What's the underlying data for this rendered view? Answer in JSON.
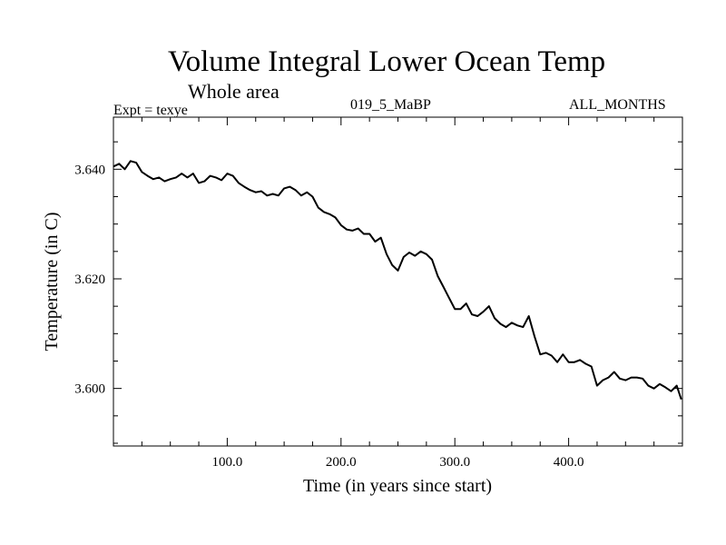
{
  "header": {
    "title": "Volume Integral Lower Ocean Temp",
    "subtitle": "Whole area",
    "experiment_label": "Expt = texye",
    "experiment_name": "019_5_MaBP",
    "season": "ALL_MONTHS"
  },
  "chart_data": {
    "type": "line",
    "xlabel": "Time (in years since start)",
    "ylabel": "Temperature (in C)",
    "xlim": [
      0,
      500
    ],
    "ylim": [
      3.5895,
      3.6495
    ],
    "x_ticks": [
      100,
      200,
      300,
      400
    ],
    "x_tick_labels": [
      "100.0",
      "200.0",
      "300.0",
      "400.0"
    ],
    "y_ticks": [
      3.6,
      3.62,
      3.64
    ],
    "y_tick_labels": [
      "3.600",
      "3.620",
      "3.640"
    ],
    "grid": false,
    "series": [
      {
        "color": "#000000",
        "x": [
          0,
          5,
          10,
          15,
          20,
          25,
          30,
          35,
          40,
          45,
          50,
          55,
          60,
          65,
          70,
          75,
          80,
          85,
          90,
          95,
          100,
          105,
          110,
          115,
          120,
          125,
          130,
          135,
          140,
          145,
          150,
          155,
          160,
          165,
          170,
          175,
          180,
          185,
          190,
          195,
          200,
          205,
          210,
          215,
          220,
          225,
          230,
          235,
          240,
          245,
          250,
          255,
          260,
          265,
          270,
          275,
          280,
          285,
          290,
          295,
          300,
          305,
          310,
          315,
          320,
          325,
          330,
          335,
          340,
          345,
          350,
          355,
          360,
          365,
          370,
          375,
          380,
          385,
          390,
          395,
          400,
          405,
          410,
          415,
          420,
          425,
          430,
          435,
          440,
          445,
          450,
          455,
          460,
          465,
          470,
          475,
          480,
          485,
          490,
          495,
          499
        ],
        "y": [
          3.6405,
          3.641,
          3.64,
          3.6415,
          3.6412,
          3.6395,
          3.6388,
          3.6382,
          3.6385,
          3.6378,
          3.6382,
          3.6385,
          3.6392,
          3.6385,
          3.6392,
          3.6375,
          3.6378,
          3.6388,
          3.6385,
          3.638,
          3.6392,
          3.6388,
          3.6375,
          3.6368,
          3.6362,
          3.6358,
          3.636,
          3.6352,
          3.6355,
          3.6352,
          3.6365,
          3.6368,
          3.6362,
          3.6352,
          3.6358,
          3.635,
          3.633,
          3.6322,
          3.6318,
          3.6312,
          3.6298,
          3.629,
          3.6288,
          3.6292,
          3.6282,
          3.6282,
          3.6268,
          3.6275,
          3.6245,
          3.6225,
          3.6215,
          3.624,
          3.6248,
          3.6242,
          3.625,
          3.6245,
          3.6235,
          3.6205,
          3.6185,
          3.6165,
          3.6145,
          3.6145,
          3.6155,
          3.6135,
          3.6132,
          3.614,
          3.615,
          3.6128,
          3.6118,
          3.6112,
          3.612,
          3.6115,
          3.6112,
          3.6132,
          3.6095,
          3.6062,
          3.6065,
          3.606,
          3.6048,
          3.6062,
          3.6048,
          3.6048,
          3.6052,
          3.6045,
          3.604,
          3.6005,
          3.6015,
          3.602,
          3.603,
          3.6018,
          3.6015,
          3.602,
          3.602,
          3.6018,
          3.6005,
          3.6,
          3.6008,
          3.6002,
          3.5995,
          3.6005,
          3.598
        ]
      }
    ]
  }
}
